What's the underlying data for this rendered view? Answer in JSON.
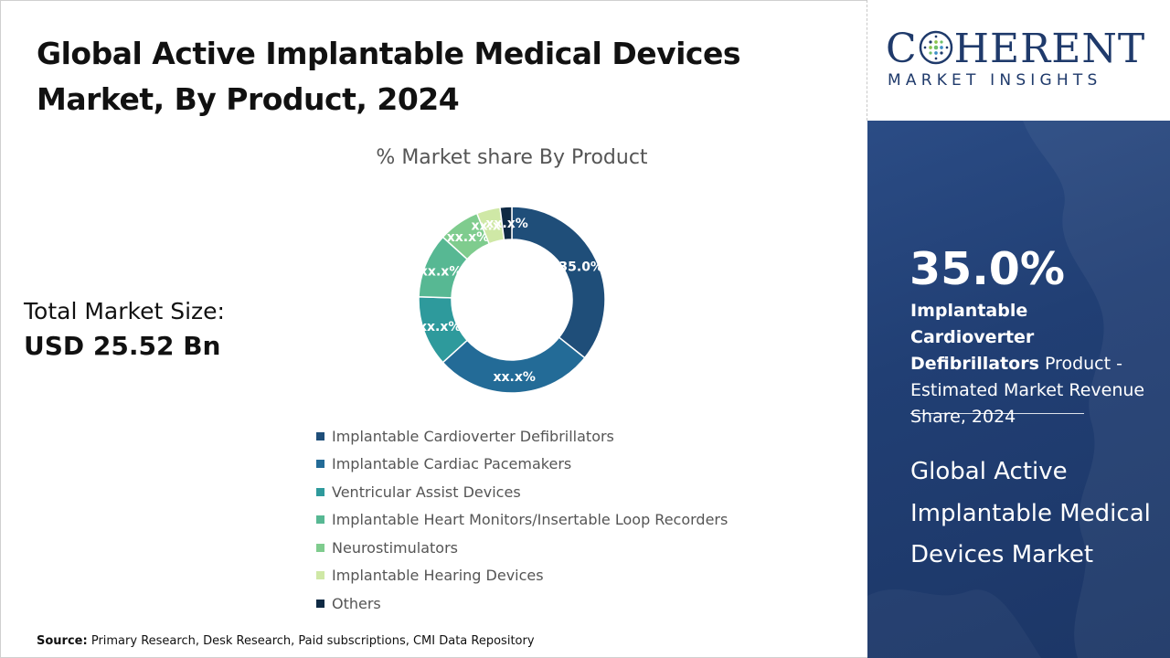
{
  "title_line1": "Global Active Implantable Medical Devices",
  "title_line2": "Market, By Product, 2024",
  "total_market": {
    "label": "Total Market Size:",
    "value": "USD 25.52 Bn"
  },
  "source": {
    "label": "Source:",
    "text": "Primary Research, Desk Research, Paid subscriptions, CMI Data Repository"
  },
  "logo": {
    "word_start": "C",
    "word_end": "HERENT",
    "subtitle": "MARKET INSIGHTS"
  },
  "side_panel": {
    "big_value": "35.0%",
    "highlight": "Implantable Cardioverter Defibrillators",
    "desc": "Product - Estimated Market Revenue Share, 2024",
    "market_name": "Global Active Implantable Medical Devices Market"
  },
  "chart_data": {
    "type": "pie",
    "subtitle": "% Market share By Product",
    "donut": true,
    "legend_position": "bottom",
    "categories": [
      "Implantable Cardioverter Defibrillators",
      "Implantable Cardiac Pacemakers",
      "Ventricular Assist Devices",
      "Implantable Heart Monitors/Insertable Loop Recorders",
      "Neurostimulators",
      "Implantable Hearing Devices",
      "Others"
    ],
    "values": [
      35.0,
      27.0,
      12.0,
      11.0,
      7.0,
      4.0,
      2.0
    ],
    "labels": [
      "35.0%",
      "xx.x%",
      "xx.x%",
      "xx.x%",
      "xx.x%",
      "xx.x%",
      "xx.x%"
    ],
    "colors": [
      "#1f4e79",
      "#236b97",
      "#2e9a9c",
      "#57b893",
      "#7fcc8e",
      "#cfe8a6",
      "#0f2a44"
    ]
  }
}
